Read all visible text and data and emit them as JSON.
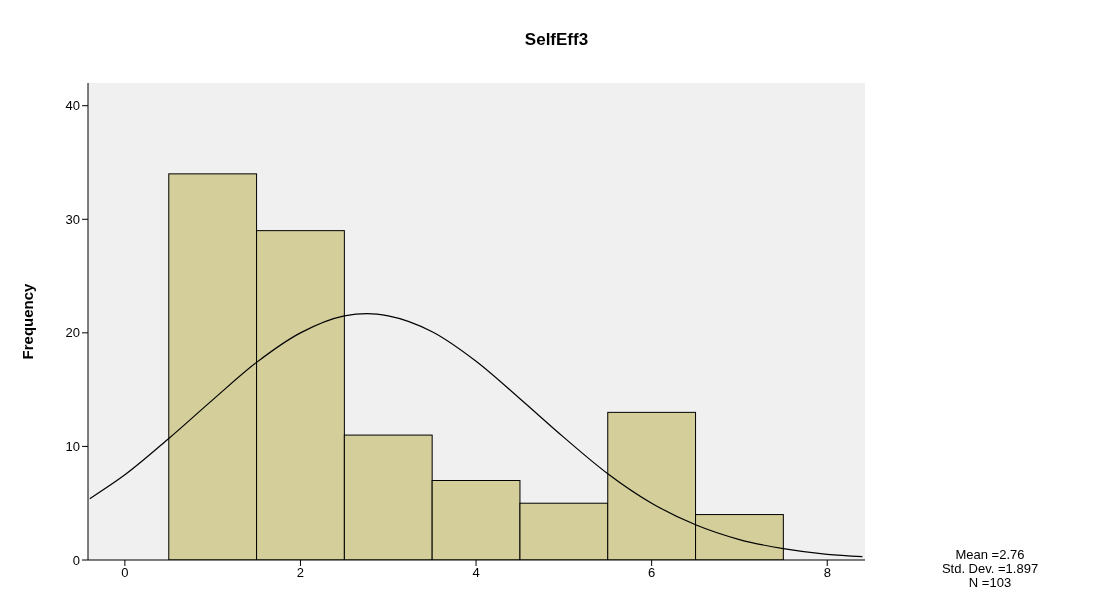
{
  "chart_data": {
    "type": "histogram",
    "title": "SelfEff3",
    "ylabel": "Frequency",
    "bins": [
      0.5,
      1.5,
      2.5,
      3.5,
      4.5,
      5.5,
      6.5,
      7.5
    ],
    "values": [
      34,
      29,
      11,
      7,
      5,
      13,
      4
    ],
    "color": "#d3ce9a",
    "series": [
      {
        "type": "line",
        "color": "#000000",
        "x": [
          -0.4,
          0,
          0.5,
          1,
          1.5,
          2,
          2.5,
          2.76,
          3,
          3.5,
          4,
          4.5,
          5,
          5.5,
          6,
          6.5,
          7,
          7.5,
          8,
          8.4
        ],
        "values": [
          5.4,
          7.5,
          10.7,
          14.1,
          17.4,
          20.0,
          21.5,
          21.7,
          21.5,
          20.1,
          17.5,
          14.2,
          10.8,
          7.6,
          5.0,
          3.1,
          1.8,
          1.0,
          0.5,
          0.3
        ]
      }
    ],
    "xlim": [
      -0.42,
      8.43
    ],
    "xticks": [
      0,
      2,
      4,
      6,
      8
    ],
    "ylim": [
      0,
      42
    ],
    "yticks": [
      0,
      10,
      20,
      30,
      40
    ],
    "grid": false,
    "annotations": [
      "Mean =2.76",
      "Std. Dev. =1.897",
      "N =103"
    ]
  }
}
